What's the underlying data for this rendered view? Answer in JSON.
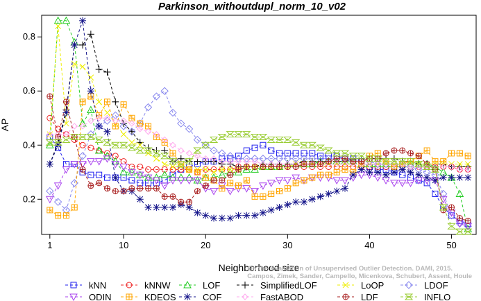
{
  "chart_data": {
    "type": "line",
    "title": "Parkinson_withoutdupl_norm_10_v02",
    "xlabel": "Neighborhood size",
    "ylabel": "AP",
    "xlim": [
      0,
      53
    ],
    "ylim": [
      0.07,
      0.88
    ],
    "xticks": [
      1,
      10,
      20,
      30,
      40,
      50
    ],
    "yticks": [
      0.2,
      0.4,
      0.6,
      0.8
    ],
    "ytick_labels": [
      "0.2",
      "0.4",
      "0.6",
      "0.8"
    ],
    "grid": false,
    "legend_position": "bottom",
    "credit": [
      "Campos, Zimek, Sander, Campello, Micenkova, Schubert, Assent, Houle",
      "On the Evaluation of Unsupervised Outlier Detection. DAMI, 2015."
    ],
    "x": [
      1,
      2,
      3,
      4,
      5,
      6,
      7,
      8,
      9,
      10,
      11,
      12,
      13,
      14,
      15,
      16,
      17,
      18,
      19,
      20,
      21,
      22,
      23,
      24,
      25,
      26,
      27,
      28,
      29,
      30,
      31,
      32,
      33,
      34,
      35,
      36,
      37,
      38,
      39,
      40,
      41,
      42,
      43,
      44,
      45,
      46,
      47,
      48,
      49,
      50,
      51,
      52
    ],
    "series": [
      {
        "name": "kNN",
        "color": "#2222ee",
        "marker": "square",
        "values": [
          0.43,
          0.39,
          0.33,
          0.33,
          0.3,
          0.29,
          0.29,
          0.28,
          0.28,
          0.28,
          0.27,
          0.26,
          0.26,
          0.26,
          0.27,
          0.29,
          0.31,
          0.32,
          0.33,
          0.34,
          0.34,
          0.35,
          0.35,
          0.36,
          0.38,
          0.39,
          0.4,
          0.38,
          0.37,
          0.37,
          0.37,
          0.37,
          0.37,
          0.36,
          0.36,
          0.36,
          0.35,
          0.35,
          0.34,
          0.32,
          0.31,
          0.31,
          0.3,
          0.29,
          0.28,
          0.27,
          0.26,
          0.22,
          0.17,
          0.14,
          0.12,
          0.11
        ]
      },
      {
        "name": "kNNW",
        "color": "#ee2222",
        "marker": "circle",
        "values": [
          0.5,
          0.46,
          0.44,
          0.42,
          0.4,
          0.39,
          0.38,
          0.37,
          0.36,
          0.34,
          0.32,
          0.32,
          0.31,
          0.31,
          0.31,
          0.31,
          0.31,
          0.31,
          0.3,
          0.31,
          0.31,
          0.31,
          0.31,
          0.32,
          0.32,
          0.32,
          0.32,
          0.32,
          0.32,
          0.32,
          0.32,
          0.32,
          0.32,
          0.32,
          0.32,
          0.32,
          0.32,
          0.32,
          0.32,
          0.32,
          0.32,
          0.32,
          0.32,
          0.32,
          0.32,
          0.32,
          0.32,
          0.32,
          0.32,
          0.32,
          0.31,
          0.31
        ]
      },
      {
        "name": "LOF",
        "color": "#22cc22",
        "marker": "triangle-up",
        "values": [
          0.4,
          0.86,
          0.86,
          0.78,
          0.48,
          0.53,
          0.38,
          0.36,
          0.34,
          0.3,
          0.3,
          0.29,
          0.28,
          0.28,
          0.29,
          0.28,
          0.28,
          0.28,
          0.27,
          0.28,
          0.28,
          0.29,
          0.3,
          0.3,
          0.31,
          0.31,
          0.32,
          0.32,
          0.32,
          0.33,
          0.33,
          0.33,
          0.33,
          0.34,
          0.34,
          0.34,
          0.34,
          0.34,
          0.33,
          0.33,
          0.33,
          0.33,
          0.33,
          0.33,
          0.33,
          0.33,
          0.33,
          0.32,
          0.3,
          0.28,
          0.22,
          0.09
        ]
      },
      {
        "name": "SimplifiedLOF",
        "color": "#000000",
        "marker": "plus",
        "values": [
          0.33,
          0.41,
          0.53,
          0.77,
          0.77,
          0.81,
          0.68,
          0.67,
          0.56,
          0.48,
          0.45,
          0.41,
          0.39,
          0.38,
          0.38,
          0.34,
          0.35,
          0.34,
          0.34,
          0.34,
          0.34,
          0.33,
          0.33,
          0.32,
          0.32,
          0.32,
          0.33,
          0.33,
          0.33,
          0.33,
          0.33,
          0.34,
          0.34,
          0.34,
          0.34,
          0.34,
          0.34,
          0.35,
          0.35,
          0.35,
          0.35,
          0.35,
          0.35,
          0.34,
          0.34,
          0.33,
          0.33,
          0.33,
          0.33,
          0.32,
          0.32,
          0.32
        ]
      },
      {
        "name": "LoOP",
        "color": "#eeee00",
        "marker": "x",
        "values": [
          0.44,
          0.84,
          0.48,
          0.7,
          0.69,
          0.65,
          0.56,
          0.52,
          0.48,
          0.44,
          0.41,
          0.4,
          0.37,
          0.35,
          0.33,
          0.32,
          0.32,
          0.31,
          0.31,
          0.31,
          0.3,
          0.31,
          0.31,
          0.31,
          0.32,
          0.32,
          0.32,
          0.32,
          0.32,
          0.32,
          0.33,
          0.33,
          0.33,
          0.33,
          0.33,
          0.33,
          0.33,
          0.33,
          0.33,
          0.33,
          0.33,
          0.33,
          0.33,
          0.33,
          0.33,
          0.33,
          0.33,
          0.33,
          0.33,
          0.33,
          0.33,
          0.33
        ]
      },
      {
        "name": "LDOF",
        "color": "#8888ee",
        "marker": "diamond",
        "values": [
          0.23,
          0.19,
          0.16,
          0.26,
          0.36,
          0.44,
          0.47,
          0.49,
          0.51,
          0.47,
          0.45,
          0.48,
          0.54,
          0.58,
          0.6,
          0.52,
          0.48,
          0.46,
          0.42,
          0.4,
          0.38,
          0.37,
          0.36,
          0.35,
          0.35,
          0.35,
          0.35,
          0.35,
          0.35,
          0.35,
          0.35,
          0.35,
          0.35,
          0.35,
          0.35,
          0.35,
          0.35,
          0.34,
          0.34,
          0.34,
          0.33,
          0.33,
          0.33,
          0.32,
          0.32,
          0.31,
          0.3,
          0.29,
          0.22,
          0.14,
          0.11,
          0.1
        ]
      },
      {
        "name": "ODIN",
        "color": "#aa44ee",
        "marker": "triangle-down",
        "values": [
          0.2,
          0.25,
          0.31,
          0.33,
          0.33,
          0.34,
          0.34,
          0.35,
          0.33,
          0.32,
          0.3,
          0.29,
          0.28,
          0.27,
          0.25,
          0.27,
          0.27,
          0.27,
          0.27,
          0.24,
          0.23,
          0.25,
          0.23,
          0.24,
          0.24,
          0.23,
          0.25,
          0.26,
          0.27,
          0.27,
          0.28,
          0.27,
          0.28,
          0.28,
          0.28,
          0.27,
          0.27,
          0.28,
          0.29,
          0.29,
          0.28,
          0.27,
          0.26,
          0.26,
          0.26,
          0.27,
          0.27,
          0.27,
          0.2,
          0.15,
          0.11,
          0.1
        ]
      },
      {
        "name": "KDEOS",
        "color": "#ffa500",
        "marker": "boxplus",
        "values": [
          0.16,
          0.14,
          0.14,
          0.17,
          0.56,
          0.58,
          0.51,
          0.56,
          0.47,
          0.55,
          0.5,
          0.48,
          0.47,
          0.43,
          0.41,
          0.37,
          0.33,
          0.31,
          0.3,
          0.28,
          0.27,
          0.24,
          0.26,
          0.25,
          0.27,
          0.21,
          0.21,
          0.22,
          0.23,
          0.24,
          0.26,
          0.27,
          0.28,
          0.29,
          0.29,
          0.3,
          0.31,
          0.3,
          0.33,
          0.36,
          0.37,
          0.34,
          0.32,
          0.33,
          0.34,
          0.36,
          0.38,
          0.34,
          0.34,
          0.37,
          0.37,
          0.36
        ]
      },
      {
        "name": "COF",
        "color": "#111188",
        "marker": "star",
        "values": [
          0.33,
          0.4,
          0.52,
          0.77,
          0.86,
          0.6,
          0.47,
          0.45,
          0.28,
          0.23,
          0.23,
          0.2,
          0.17,
          0.17,
          0.17,
          0.17,
          0.18,
          0.17,
          0.15,
          0.14,
          0.13,
          0.13,
          0.13,
          0.14,
          0.14,
          0.14,
          0.15,
          0.16,
          0.17,
          0.18,
          0.19,
          0.19,
          0.2,
          0.21,
          0.22,
          0.23,
          0.24,
          0.29,
          0.31,
          0.3,
          0.3,
          0.29,
          0.3,
          0.31,
          0.3,
          0.29,
          0.28,
          0.27,
          0.28,
          0.28,
          0.28,
          0.28
        ]
      },
      {
        "name": "FastABOD",
        "color": "#ffaaee",
        "marker": "diamond-small",
        "values": [
          0.44,
          0.44,
          0.44,
          0.47,
          0.47,
          0.49,
          0.5,
          0.5,
          0.49,
          0.49,
          0.48,
          0.46,
          0.45,
          0.44,
          0.42,
          0.4,
          0.38,
          0.37,
          0.36,
          0.35,
          0.35,
          0.34,
          0.34,
          0.34,
          0.34,
          0.34,
          0.33,
          0.33,
          0.33,
          0.33,
          0.33,
          0.33,
          0.33,
          0.33,
          0.33,
          0.33,
          0.33,
          0.33,
          0.33,
          0.33,
          0.33,
          0.33,
          0.33,
          0.33,
          0.32,
          0.32,
          0.32,
          0.32,
          0.32,
          0.32,
          0.31,
          0.31
        ]
      },
      {
        "name": "LDF",
        "color": "#aa2222",
        "marker": "circleplus",
        "values": [
          0.58,
          0.43,
          0.56,
          0.43,
          0.31,
          0.25,
          0.26,
          0.24,
          0.23,
          0.23,
          0.24,
          0.24,
          0.24,
          0.24,
          0.21,
          0.21,
          0.19,
          0.19,
          0.23,
          0.25,
          0.27,
          0.27,
          0.29,
          0.31,
          0.32,
          0.32,
          0.32,
          0.32,
          0.32,
          0.32,
          0.32,
          0.33,
          0.33,
          0.33,
          0.34,
          0.35,
          0.35,
          0.34,
          0.34,
          0.35,
          0.35,
          0.37,
          0.38,
          0.38,
          0.37,
          0.36,
          0.33,
          0.31,
          0.16,
          0.17,
          0.13,
          0.12
        ]
      },
      {
        "name": "INFLO",
        "color": "#99cc33",
        "marker": "hourglass",
        "values": [
          0.41,
          0.41,
          0.42,
          0.43,
          0.43,
          0.43,
          0.42,
          0.41,
          0.4,
          0.4,
          0.39,
          0.38,
          0.38,
          0.37,
          0.36,
          0.34,
          0.33,
          0.34,
          0.38,
          0.4,
          0.42,
          0.43,
          0.44,
          0.44,
          0.44,
          0.43,
          0.43,
          0.42,
          0.42,
          0.42,
          0.41,
          0.4,
          0.4,
          0.39,
          0.38,
          0.37,
          0.37,
          0.36,
          0.36,
          0.35,
          0.35,
          0.34,
          0.34,
          0.34,
          0.34,
          0.33,
          0.32,
          0.31,
          0.17,
          0.1,
          0.08,
          0.08
        ]
      }
    ]
  }
}
